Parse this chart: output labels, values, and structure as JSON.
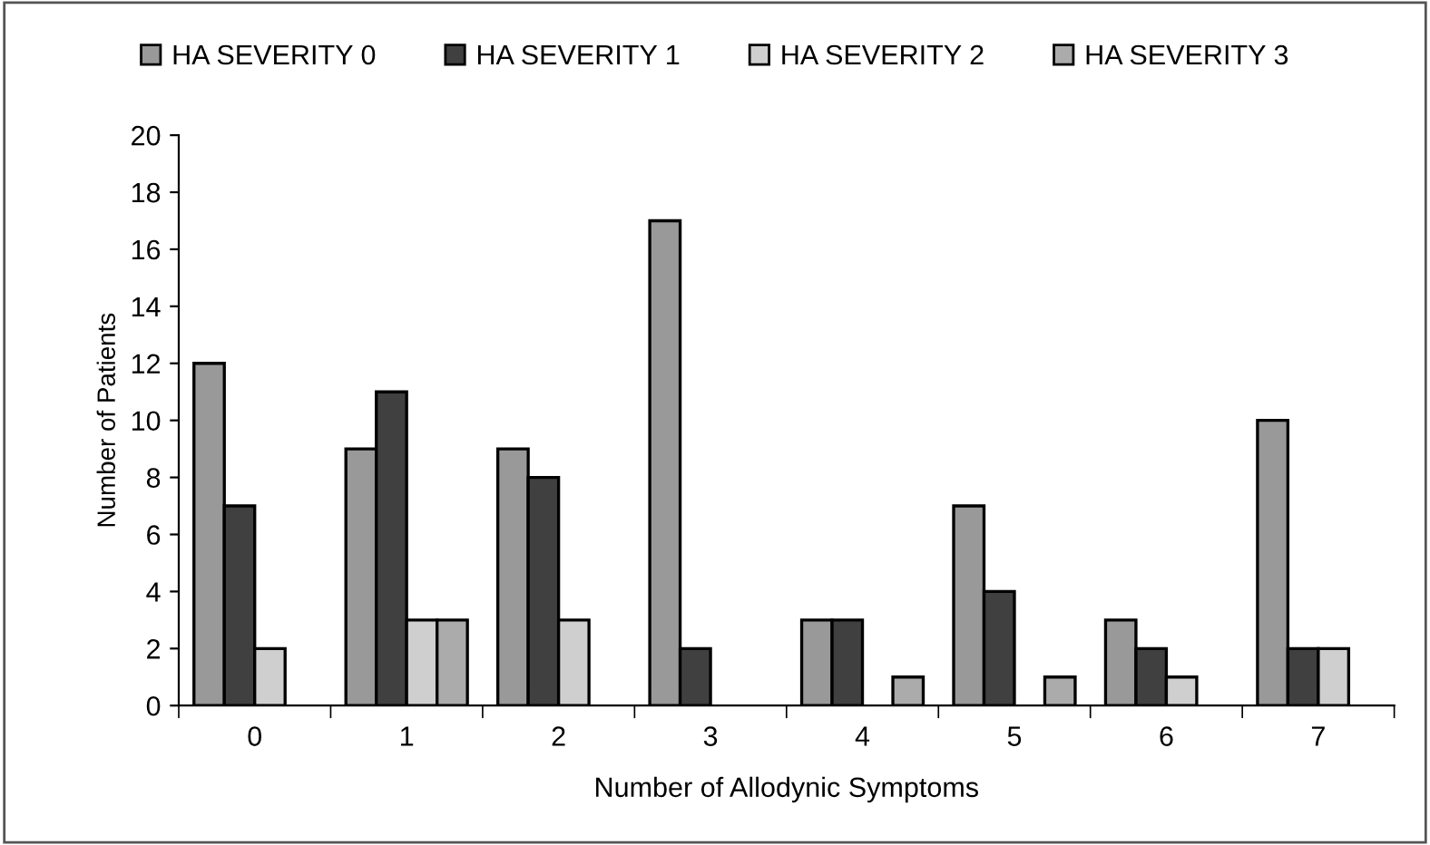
{
  "chart_data": {
    "type": "bar",
    "xlabel": "Number of Allodynic Symptoms",
    "ylabel": "Number of Patients",
    "categories": [
      "0",
      "1",
      "2",
      "3",
      "4",
      "5",
      "6",
      "7"
    ],
    "series": [
      {
        "name": "HA SEVERITY 0",
        "color": "#999999",
        "values": [
          12,
          9,
          9,
          17,
          3,
          7,
          3,
          10
        ]
      },
      {
        "name": "HA SEVERITY 1",
        "color": "#404040",
        "values": [
          7,
          11,
          8,
          2,
          3,
          4,
          2,
          2
        ]
      },
      {
        "name": "HA SEVERITY 2",
        "color": "#cfcfcf",
        "values": [
          2,
          3,
          3,
          0,
          0,
          0,
          1,
          2
        ]
      },
      {
        "name": "HA SEVERITY 3",
        "color": "#ababab",
        "values": [
          0,
          3,
          0,
          0,
          1,
          1,
          0,
          0
        ]
      }
    ],
    "ylim": [
      0,
      20
    ],
    "yticks": [
      0,
      2,
      4,
      6,
      8,
      10,
      12,
      14,
      16,
      18,
      20
    ],
    "grid": false,
    "legend": "top"
  }
}
